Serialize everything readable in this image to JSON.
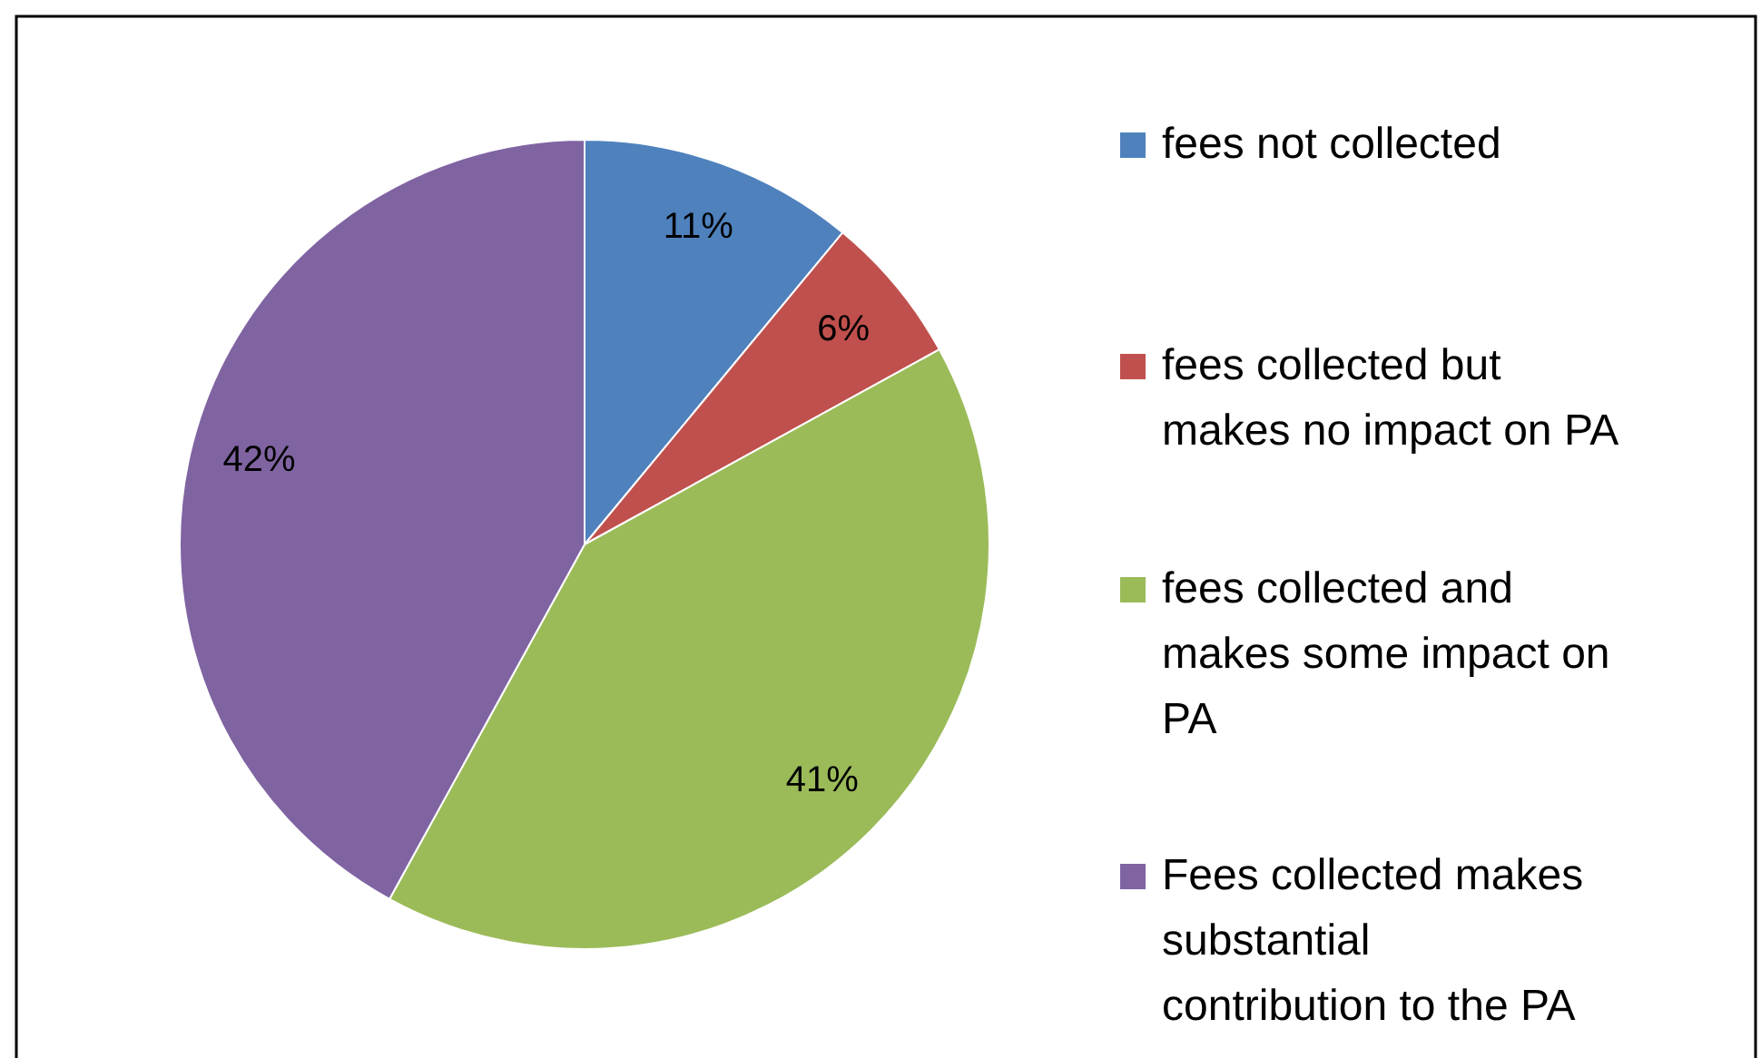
{
  "chart_data": {
    "type": "pie",
    "categories": [
      "fees not collected",
      "fees collected but makes no impact on PA",
      "fees collected and makes some impact on PA",
      "Fees collected makes substantial contribution to the PA"
    ],
    "values": [
      11,
      6,
      41,
      42
    ],
    "colors": [
      "#4f81bd",
      "#c0504d",
      "#9bbb59",
      "#8064a2"
    ],
    "value_labels": [
      "11%",
      "6%",
      "41%",
      "42%"
    ],
    "legend": "right"
  }
}
